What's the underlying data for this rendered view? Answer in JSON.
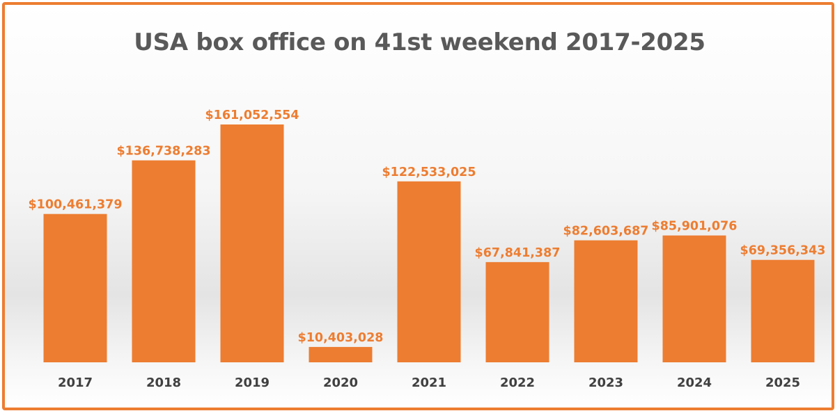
{
  "colors": {
    "bar": "#ed7d31",
    "frame": "#ed7d31",
    "title": "#595959",
    "tick_label": "#404040",
    "data_label": "#ed7d31"
  },
  "chart_data": {
    "type": "bar",
    "title": "USA box office on 41st weekend 2017-2025",
    "xlabel": "",
    "ylabel": "",
    "categories": [
      "2017",
      "2018",
      "2019",
      "2020",
      "2021",
      "2022",
      "2023",
      "2024",
      "2025"
    ],
    "values": [
      100461379,
      136738283,
      161052554,
      10403028,
      122533025,
      67841387,
      82603687,
      85901076,
      69356343
    ],
    "data_labels": [
      "$100,461,379",
      "$136,738,283",
      "$161,052,554",
      "$10,403,028",
      "$122,533,025",
      "$67,841,387",
      "$82,603,687",
      "$85,901,076",
      "$69,356,343"
    ],
    "ylim": [
      0,
      161052554
    ],
    "grid": false,
    "legend": "none"
  }
}
